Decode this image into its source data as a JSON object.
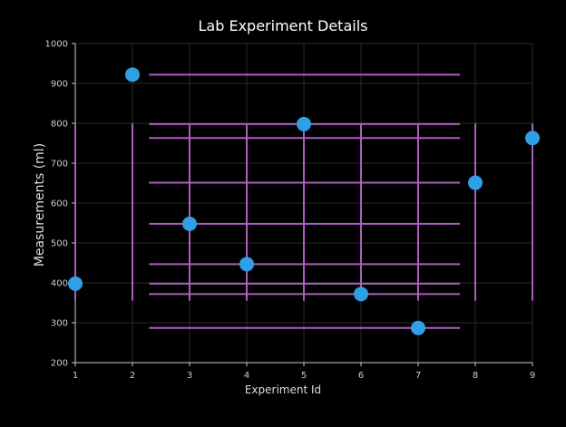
{
  "chart_data": {
    "type": "scatter",
    "title": "Lab Experiment Details",
    "xlabel": "Experiment Id",
    "ylabel": "Measurements (ml)",
    "xlim": [
      1,
      9
    ],
    "ylim": [
      200,
      1000
    ],
    "x_ticks": [
      1,
      2,
      3,
      4,
      5,
      6,
      7,
      8,
      9
    ],
    "y_ticks": [
      200,
      300,
      400,
      500,
      600,
      700,
      800,
      900,
      1000
    ],
    "grid": true,
    "legend": "none",
    "points": [
      {
        "x": 1,
        "y": 398
      },
      {
        "x": 2,
        "y": 922
      },
      {
        "x": 3,
        "y": 548
      },
      {
        "x": 4,
        "y": 447
      },
      {
        "x": 5,
        "y": 798
      },
      {
        "x": 6,
        "y": 372
      },
      {
        "x": 7,
        "y": 287
      },
      {
        "x": 8,
        "y": 651
      },
      {
        "x": 9,
        "y": 763
      }
    ],
    "colors": {
      "marker": "#2fa0e6",
      "error_bar": "#b05cc0",
      "grid": "#2a2a2a",
      "axis": "#cccccc"
    }
  }
}
